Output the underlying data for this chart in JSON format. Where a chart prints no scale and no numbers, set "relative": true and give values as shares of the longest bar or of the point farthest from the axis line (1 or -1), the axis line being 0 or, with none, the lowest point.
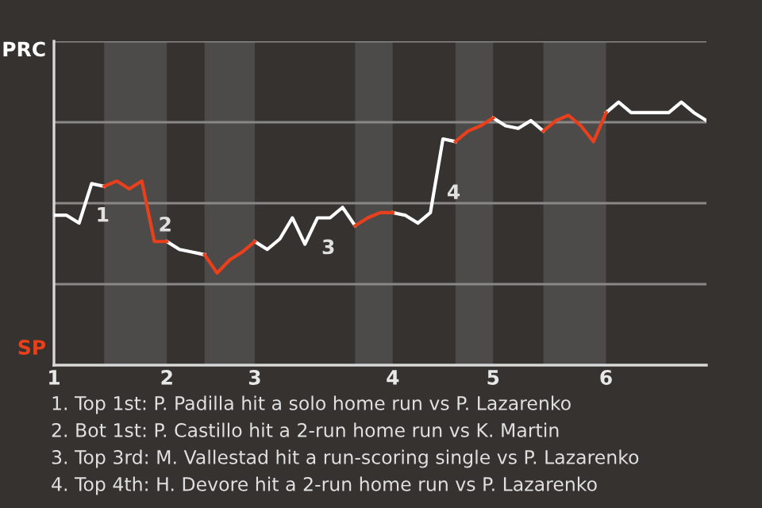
{
  "chart_data": {
    "type": "line",
    "relative": true,
    "categories": [
      "1",
      null,
      null,
      null,
      null,
      null,
      null,
      null,
      null,
      "2",
      null,
      null,
      null,
      null,
      null,
      null,
      "3",
      null,
      null,
      null,
      null,
      null,
      null,
      null,
      null,
      null,
      null,
      "4",
      null,
      null,
      null,
      null,
      null,
      null,
      null,
      "5",
      null,
      null,
      null,
      null,
      null,
      null,
      null,
      null,
      "6",
      null,
      null,
      null,
      null,
      null,
      null,
      null,
      null
    ],
    "series": [
      {
        "name": "PRC",
        "color": "#ffffff",
        "values": [
          0.57,
          0.57,
          0.54,
          0.69,
          0.68,
          null,
          null,
          null,
          null,
          0.47,
          0.44,
          0.43,
          0.42,
          null,
          null,
          null,
          0.47,
          0.44,
          0.48,
          0.56,
          0.46,
          0.56,
          0.56,
          0.6,
          0.53,
          null,
          null,
          0.58,
          0.57,
          0.54,
          0.58,
          0.86,
          0.85,
          null,
          null,
          0.94,
          0.91,
          0.9,
          0.93,
          0.89,
          null,
          null,
          null,
          null,
          0.96,
          1,
          0.96,
          0.96,
          0.96,
          0.96,
          1,
          0.96,
          0.93
        ]
      },
      {
        "name": "SP",
        "color": "#e8401c",
        "values": [
          null,
          null,
          null,
          null,
          0.68,
          0.7,
          0.67,
          0.7,
          0.47,
          0.47,
          null,
          null,
          0.42,
          0.35,
          0.4,
          0.43,
          0.47,
          null,
          null,
          null,
          null,
          null,
          null,
          null,
          0.53,
          0.56,
          0.58,
          0.58,
          null,
          null,
          null,
          null,
          0.85,
          0.89,
          0.91,
          0.94,
          null,
          null,
          null,
          0.89,
          0.93,
          0.95,
          0.91,
          0.85,
          0.96,
          null,
          null,
          null,
          null,
          null,
          null,
          null,
          null
        ]
      }
    ],
    "grid": "y",
    "annotations": [
      "1",
      "2",
      "3",
      "4",
      "1. Top 1st: P. Padilla hit a solo home run vs P. Lazarenko",
      "2. Bot 1st: P. Castillo hit a 2-run home run vs K. Martin",
      "3. Top 3rd: M. Vallestad hit a run-scoring single vs P. Lazarenko",
      "4. Top 4th: H. Devore hit a 2-run home run vs P. Lazarenko"
    ]
  }
}
